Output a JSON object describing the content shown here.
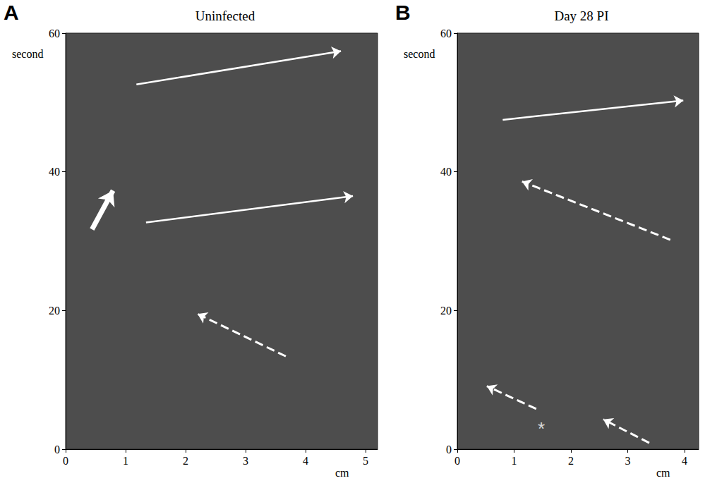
{
  "chart_data": [
    {
      "type": "kymograph",
      "panel": "A",
      "title": "Uninfected",
      "x_label": "cm",
      "y_label": "second",
      "xlim": [
        0,
        5.2
      ],
      "xticks": [
        0,
        1,
        2,
        3,
        4,
        5
      ],
      "ylim": [
        0,
        60
      ],
      "yticks": [
        0,
        20,
        40,
        60
      ],
      "color": "#ffffff",
      "arrows": [
        {
          "from": [
            1.18,
            52.6
          ],
          "to": [
            4.59,
            57.4
          ],
          "line_style": "solid"
        },
        {
          "from": [
            0.44,
            31.7
          ],
          "to": [
            0.79,
            37.3
          ],
          "line_style": "thick"
        },
        {
          "from": [
            1.34,
            32.7
          ],
          "to": [
            4.79,
            36.5
          ],
          "line_style": "solid"
        },
        {
          "from": [
            3.67,
            13.4
          ],
          "to": [
            2.2,
            19.5
          ],
          "line_style": "dashed"
        }
      ],
      "annotations": []
    },
    {
      "type": "kymograph",
      "panel": "B",
      "title": "Day 28 PI",
      "x_label": "cm",
      "y_label": "second",
      "xlim": [
        0,
        4.25
      ],
      "xticks": [
        0,
        1,
        2,
        3,
        4
      ],
      "ylim": [
        0,
        60
      ],
      "yticks": [
        0,
        20,
        40,
        60
      ],
      "color": "#ffffff",
      "arrows": [
        {
          "from": [
            0.8,
            47.5
          ],
          "to": [
            3.98,
            50.3
          ],
          "line_style": "solid"
        },
        {
          "from": [
            3.75,
            30.2
          ],
          "to": [
            1.14,
            38.6
          ],
          "line_style": "dashed"
        },
        {
          "from": [
            1.39,
            5.8
          ],
          "to": [
            0.52,
            9.1
          ],
          "line_style": "dashed"
        },
        {
          "from": [
            3.38,
            0.9
          ],
          "to": [
            2.57,
            4.3
          ],
          "line_style": "dashed"
        }
      ],
      "annotations": [
        {
          "text": "*",
          "x": 1.48,
          "y": 2.9
        }
      ]
    }
  ]
}
